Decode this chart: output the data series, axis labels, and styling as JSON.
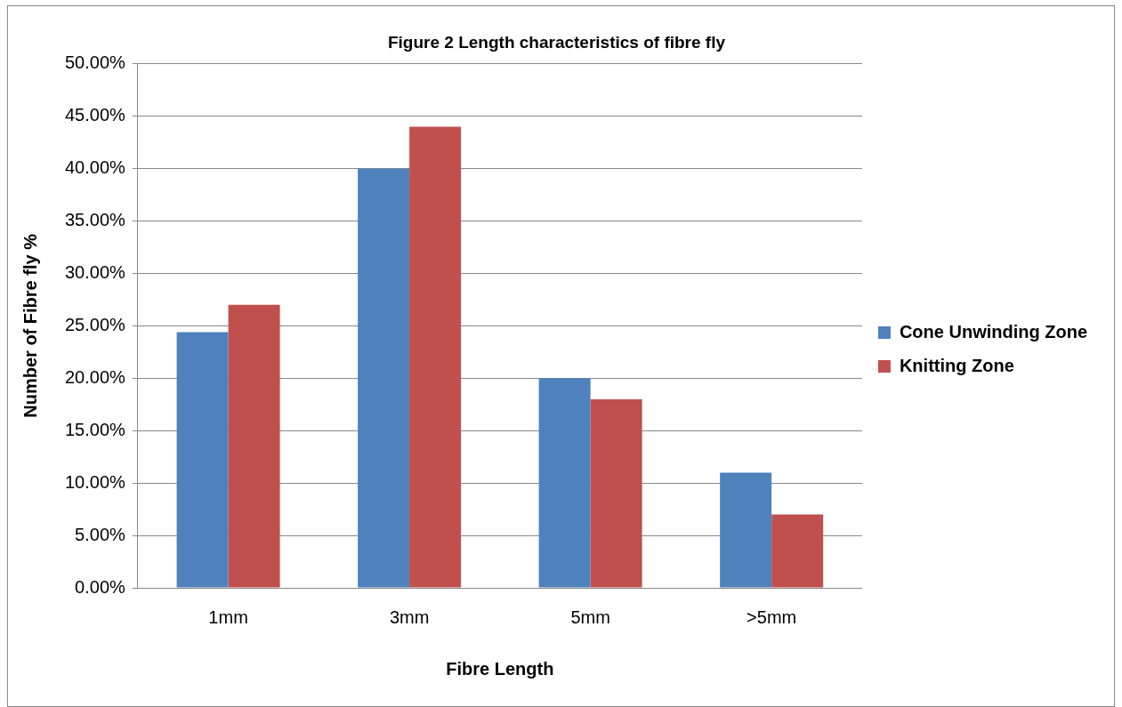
{
  "chart_data": {
    "type": "bar",
    "title": "Figure 2 Length characteristics of fibre fly",
    "xlabel": "Fibre Length",
    "ylabel": "Number of Fibre fly %",
    "categories": [
      "1mm",
      "3mm",
      "5mm",
      ">5mm"
    ],
    "series": [
      {
        "name": "Cone Unwinding Zone",
        "color": "#4f81bd",
        "values": [
          24.4,
          40,
          20,
          11
        ]
      },
      {
        "name": "Knitting Zone",
        "color": "#c0504d",
        "values": [
          27,
          44,
          18,
          7
        ]
      }
    ],
    "ylim": [
      0,
      50
    ],
    "yticks": [
      {
        "value": 0,
        "label": "0.00%"
      },
      {
        "value": 5,
        "label": "5.00%"
      },
      {
        "value": 10,
        "label": "10.00%"
      },
      {
        "value": 15,
        "label": "15.00%"
      },
      {
        "value": 20,
        "label": "20.00%"
      },
      {
        "value": 25,
        "label": "25.00%"
      },
      {
        "value": 30,
        "label": "30.00%"
      },
      {
        "value": 35,
        "label": "35.00%"
      },
      {
        "value": 40,
        "label": "40.00%"
      },
      {
        "value": 45,
        "label": "45.00%"
      },
      {
        "value": 50,
        "label": "50.00%"
      }
    ],
    "grid": "y",
    "legend": "right"
  }
}
